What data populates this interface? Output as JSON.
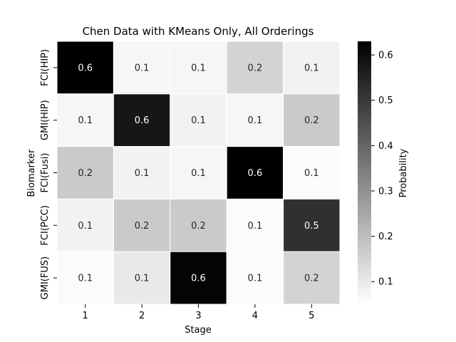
{
  "chart_data": {
    "type": "heatmap",
    "title": "Chen Data with KMeans Only, All Orderings",
    "xlabel": "Stage",
    "ylabel": "Biomarker",
    "x_categories": [
      "1",
      "2",
      "3",
      "4",
      "5"
    ],
    "y_categories": [
      "FCI(HIP)",
      "GMI(HIP)",
      "FCI(Fusi)",
      "FCI(PCC)",
      "GMI(FUS)"
    ],
    "values": [
      [
        0.63,
        0.07,
        0.07,
        0.15,
        0.08
      ],
      [
        0.07,
        0.58,
        0.08,
        0.07,
        0.17
      ],
      [
        0.17,
        0.08,
        0.07,
        0.63,
        0.06
      ],
      [
        0.08,
        0.17,
        0.17,
        0.06,
        0.52
      ],
      [
        0.06,
        0.1,
        0.62,
        0.06,
        0.15
      ]
    ],
    "labels": [
      [
        "0.6",
        "0.1",
        "0.1",
        "0.2",
        "0.1"
      ],
      [
        "0.1",
        "0.6",
        "0.1",
        "0.1",
        "0.2"
      ],
      [
        "0.2",
        "0.1",
        "0.1",
        "0.6",
        "0.1"
      ],
      [
        "0.1",
        "0.2",
        "0.2",
        "0.1",
        "0.5"
      ],
      [
        "0.1",
        "0.1",
        "0.6",
        "0.1",
        "0.2"
      ]
    ],
    "colormap": "Greys",
    "colorbar": {
      "label": "Probability",
      "range": [
        0.05,
        0.63
      ],
      "ticks": [
        "0.1",
        "0.2",
        "0.3",
        "0.4",
        "0.5",
        "0.6"
      ],
      "tick_values": [
        0.1,
        0.2,
        0.3,
        0.4,
        0.5,
        0.6
      ]
    },
    "grid": false,
    "colors": {
      "low": "#ffffff",
      "high": "#000000",
      "text_dark": "#262626",
      "text_light": "#ffffff"
    }
  }
}
